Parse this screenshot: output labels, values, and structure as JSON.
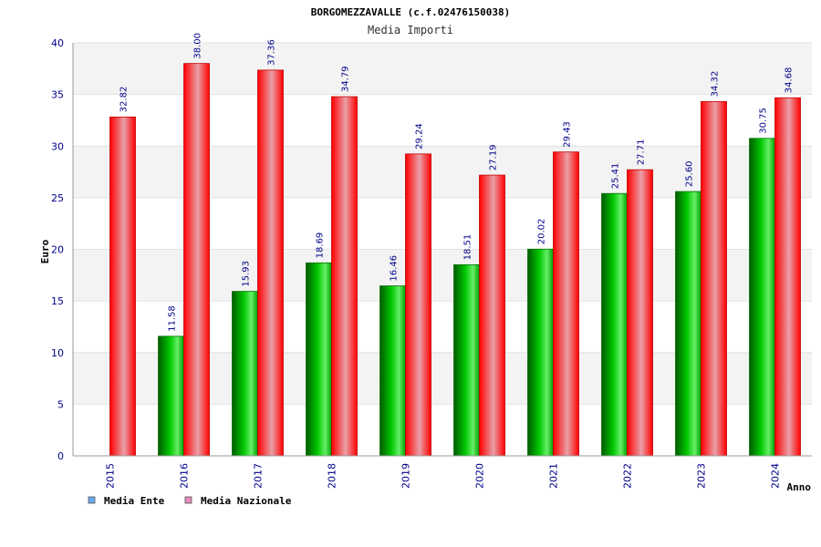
{
  "chart_data": {
    "type": "bar",
    "title": "BORGOMEZZAVALLE (c.f.02476150038)",
    "subtitle": "Media Importi",
    "xlabel": "Anno",
    "ylabel": "Euro",
    "ylim": [
      0,
      40
    ],
    "yticks": [
      0,
      5,
      10,
      15,
      20,
      25,
      30,
      35,
      40
    ],
    "categories": [
      "2015",
      "2016",
      "2017",
      "2018",
      "2019",
      "2020",
      "2021",
      "2022",
      "2023",
      "2024"
    ],
    "series": [
      {
        "name": "Media Ente",
        "color": "#00a000",
        "legend_color": "#6aa8ee",
        "values": [
          null,
          11.58,
          15.93,
          18.69,
          16.46,
          18.51,
          20.02,
          25.41,
          25.6,
          30.75
        ],
        "labels": [
          "",
          "11.58",
          "15.93",
          "18.69",
          "16.46",
          "18.51",
          "20.02",
          "25.41",
          "25.60",
          "30.75"
        ]
      },
      {
        "name": "Media Nazionale",
        "color": "#ee0000",
        "legend_color": "#e88aba",
        "values": [
          32.82,
          38.0,
          37.36,
          34.79,
          29.24,
          27.19,
          29.43,
          27.71,
          34.32,
          34.68
        ],
        "labels": [
          "32.82",
          "38.00",
          "37.36",
          "34.79",
          "29.24",
          "27.19",
          "29.43",
          "27.71",
          "34.32",
          "34.68"
        ]
      }
    ],
    "grid": true,
    "legend_position": "bottom-left"
  }
}
